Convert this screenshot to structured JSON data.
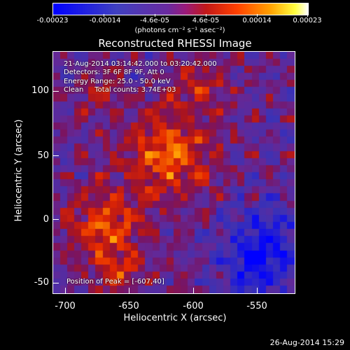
{
  "colorbar": {
    "ticks": [
      "-0.00023",
      "-0.00014",
      "-4.6e-05",
      "4.6e-05",
      "0.00014",
      "0.00023"
    ],
    "units": "(photons cm⁻² s⁻¹ asec⁻²)"
  },
  "title": "Reconstructed RHESSI Image",
  "info": {
    "time_range": "21-Aug-2014 03:14:42.000 to 03:20:42.000",
    "detectors": "Detectors: 3F 6F 8F 9F, Att 0",
    "energy": "Energy Range: 25.0 - 50.0 keV",
    "method_counts": "Clean     Total counts: 3.74E+03",
    "peak": "Position of Peak = [-607,40]"
  },
  "axes": {
    "xlabel": "Heliocentric X (arcsec)",
    "ylabel": "Heliocentric Y (arcsec)",
    "xticks": [
      "-700",
      "-650",
      "-600",
      "-550"
    ],
    "yticks": [
      "100",
      "50",
      "0",
      "-50"
    ]
  },
  "timestamp": "26-Aug-2014 15:29"
}
